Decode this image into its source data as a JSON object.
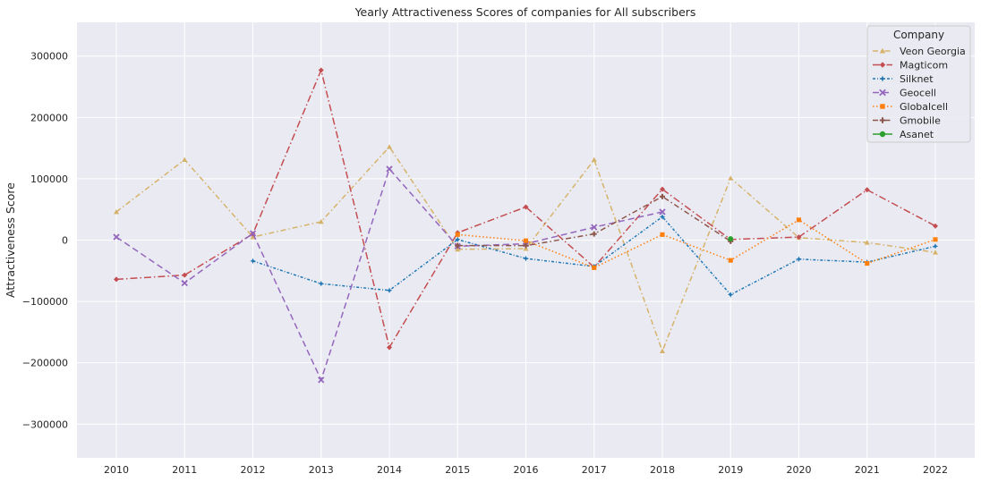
{
  "chart_data": {
    "type": "line",
    "title": "Yearly Attractiveness Scores of companies for All subscribers",
    "xlabel": "",
    "ylabel": "Attractiveness Score",
    "x": [
      "2010",
      "2011",
      "2012",
      "2013",
      "2014",
      "2015",
      "2016",
      "2017",
      "2018",
      "2019",
      "2020",
      "2021",
      "2022"
    ],
    "ylim": [
      -355000,
      355000
    ],
    "yticks": [
      -300000,
      -200000,
      -100000,
      0,
      100000,
      200000,
      300000
    ],
    "ytick_labels": [
      "−300000",
      "−200000",
      "−100000",
      "0",
      "100000",
      "200000",
      "300000"
    ],
    "grid": true,
    "legend": {
      "title": "Company",
      "position": "top-right"
    },
    "series": [
      {
        "name": "Veon Georgia",
        "color": "#d6b36a",
        "dash": "6,3,1.5,3",
        "marker": "triangle",
        "values": [
          46000,
          131000,
          5000,
          30000,
          152000,
          -15000,
          -14000,
          131000,
          -181000,
          101000,
          4000,
          -4000,
          -20000
        ]
      },
      {
        "name": "Magticom",
        "color": "#c44e52",
        "dash": "8,3,1.5,3",
        "marker": "diamond",
        "values": [
          -64000,
          -57000,
          10000,
          277000,
          -175000,
          12000,
          54000,
          -44000,
          83000,
          1000,
          5000,
          82000,
          23000
        ]
      },
      {
        "name": "Silknet",
        "color": "#1f77b4",
        "dash": "3,2,1,2",
        "marker": "star",
        "values": [
          null,
          null,
          -34000,
          -71000,
          -82000,
          1000,
          -30000,
          -43000,
          38000,
          -89000,
          -31000,
          -36000,
          -10000
        ]
      },
      {
        "name": "Geocell",
        "color": "#9467bd",
        "dash": "7,4",
        "marker": "x",
        "values": [
          5000,
          -70000,
          11000,
          -228000,
          116000,
          -10000,
          -6000,
          21000,
          46000,
          null,
          null,
          null,
          null
        ]
      },
      {
        "name": "Globalcell",
        "color": "#ff7f0e",
        "dash": "1.5,2.5",
        "marker": "square",
        "values": [
          null,
          null,
          null,
          null,
          null,
          9000,
          -1000,
          -45000,
          9000,
          -33000,
          33000,
          -38000,
          1000
        ]
      },
      {
        "name": "Gmobile",
        "color": "#8c564b",
        "dash": "6,3,1.5,3",
        "marker": "plus",
        "values": [
          null,
          null,
          null,
          null,
          null,
          -9000,
          -9000,
          10000,
          71000,
          -2000,
          null,
          null,
          null
        ]
      },
      {
        "name": "Asanet",
        "color": "#2ca02c",
        "dash": "",
        "marker": "circle",
        "values": [
          null,
          null,
          null,
          null,
          null,
          null,
          null,
          null,
          null,
          2000,
          null,
          null,
          null
        ]
      }
    ]
  }
}
